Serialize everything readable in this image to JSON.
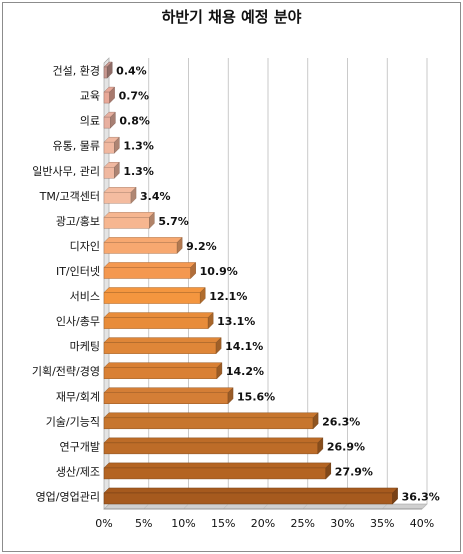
{
  "chart_data": {
    "type": "bar",
    "orientation": "horizontal",
    "title": "하반기 채용 예정 분야",
    "categories": [
      "건설, 환경",
      "교육",
      "의료",
      "유통, 물류",
      "일반사무, 관리",
      "TM/고객센터",
      "광고/홍보",
      "디자인",
      "IT/인터넷",
      "서비스",
      "인사/총무",
      "마케팅",
      "기획/전략/경영",
      "재무/회계",
      "기술/기능직",
      "연구개발",
      "생산/제조",
      "영업/영업관리"
    ],
    "values": [
      0.4,
      0.7,
      0.8,
      1.3,
      1.3,
      3.4,
      5.7,
      9.2,
      10.9,
      12.1,
      13.1,
      14.1,
      14.2,
      15.6,
      26.3,
      26.9,
      27.9,
      36.3
    ],
    "value_labels": [
      "0.4%",
      "0.7%",
      "0.8%",
      "1.3%",
      "1.3%",
      "3.4%",
      "5.7%",
      "9.2%",
      "10.9%",
      "12.1%",
      "13.1%",
      "14.1%",
      "14.2%",
      "15.6%",
      "26.3%",
      "26.9%",
      "27.9%",
      "36.3%"
    ],
    "xlim": [
      0,
      40
    ],
    "xticks": [
      "0%",
      "5%",
      "10%",
      "15%",
      "20%",
      "25%",
      "30%",
      "35%",
      "40%"
    ],
    "grid": true,
    "bar_colors": [
      "#c89890",
      "#e8a898",
      "#e8b0a0",
      "#f0b8a0",
      "#f0b8a0",
      "#f4bca0",
      "#f6b690",
      "#f7a870",
      "#f49850",
      "#f4963f",
      "#e88c3a",
      "#df8638",
      "#d98034",
      "#d47e36",
      "#c7762e",
      "#bd6c28",
      "#b46422",
      "#a65a1e"
    ]
  }
}
